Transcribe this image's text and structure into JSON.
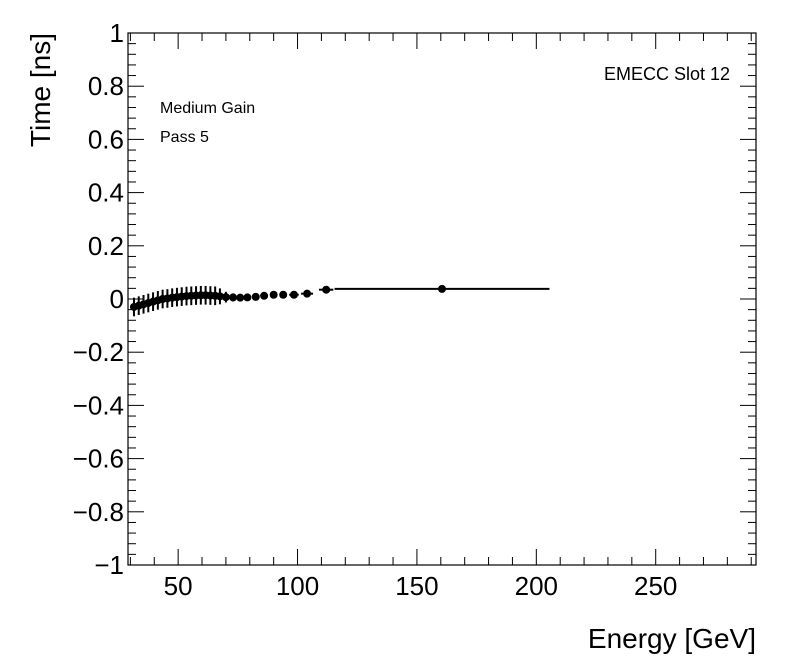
{
  "chart_data": {
    "type": "scatter",
    "xlabel": "Energy [GeV]",
    "ylabel": "Time [ns]",
    "xlim": [
      29,
      292
    ],
    "ylim": [
      -1,
      1
    ],
    "x_ticks": [
      50,
      100,
      150,
      200,
      250
    ],
    "x_tick_labels": [
      "50",
      "100",
      "150",
      "200",
      "250"
    ],
    "y_ticks": [
      -1,
      -0.8,
      -0.6,
      -0.4,
      -0.2,
      0,
      0.2,
      0.4,
      0.6,
      0.8,
      1
    ],
    "y_tick_labels": [
      "−1",
      "−0.8",
      "−0.6",
      "−0.4",
      "−0.2",
      "0",
      "0.2",
      "0.4",
      "0.6",
      "0.8",
      "1"
    ],
    "annotations": [
      "Medium Gain",
      "Pass 5",
      "EMECC Slot 12"
    ],
    "grid": false,
    "series": [
      {
        "color": "#000000",
        "marker": "circle",
        "points": [
          {
            "x": 31.5,
            "y": -0.03,
            "xerr": 1.0,
            "yerr": 0.035
          },
          {
            "x": 33.5,
            "y": -0.025,
            "xerr": 1.0,
            "yerr": 0.035
          },
          {
            "x": 35.5,
            "y": -0.02,
            "xerr": 1.0,
            "yerr": 0.035
          },
          {
            "x": 37.5,
            "y": -0.015,
            "xerr": 1.0,
            "yerr": 0.035
          },
          {
            "x": 39.5,
            "y": -0.01,
            "xerr": 1.0,
            "yerr": 0.035
          },
          {
            "x": 41.5,
            "y": -0.005,
            "xerr": 1.0,
            "yerr": 0.035
          },
          {
            "x": 43.5,
            "y": 0.0,
            "xerr": 1.0,
            "yerr": 0.035
          },
          {
            "x": 45.5,
            "y": 0.002,
            "xerr": 1.0,
            "yerr": 0.035
          },
          {
            "x": 47.5,
            "y": 0.005,
            "xerr": 1.0,
            "yerr": 0.035
          },
          {
            "x": 49.5,
            "y": 0.007,
            "xerr": 1.0,
            "yerr": 0.035
          },
          {
            "x": 51.5,
            "y": 0.009,
            "xerr": 1.0,
            "yerr": 0.035
          },
          {
            "x": 53.5,
            "y": 0.011,
            "xerr": 1.0,
            "yerr": 0.035
          },
          {
            "x": 55.5,
            "y": 0.012,
            "xerr": 1.0,
            "yerr": 0.035
          },
          {
            "x": 57.5,
            "y": 0.013,
            "xerr": 1.0,
            "yerr": 0.035
          },
          {
            "x": 59.5,
            "y": 0.014,
            "xerr": 1.0,
            "yerr": 0.035
          },
          {
            "x": 61.5,
            "y": 0.014,
            "xerr": 1.0,
            "yerr": 0.035
          },
          {
            "x": 63.5,
            "y": 0.013,
            "xerr": 1.0,
            "yerr": 0.035
          },
          {
            "x": 65.5,
            "y": 0.012,
            "xerr": 1.0,
            "yerr": 0.035
          },
          {
            "x": 67.5,
            "y": 0.01,
            "xerr": 1.0,
            "yerr": 0.03
          },
          {
            "x": 70.0,
            "y": 0.007,
            "xerr": 1.2,
            "yerr": 0.02
          },
          {
            "x": 73.0,
            "y": 0.006,
            "xerr": 1.2,
            "yerr": 0.015
          },
          {
            "x": 76.0,
            "y": 0.005,
            "xerr": 1.2,
            "yerr": 0.012
          },
          {
            "x": 79.0,
            "y": 0.006,
            "xerr": 1.2,
            "yerr": 0.01
          },
          {
            "x": 82.5,
            "y": 0.008,
            "xerr": 1.5,
            "yerr": 0.008
          },
          {
            "x": 86.0,
            "y": 0.012,
            "xerr": 1.5,
            "yerr": 0.007
          },
          {
            "x": 90.0,
            "y": 0.016,
            "xerr": 1.5,
            "yerr": 0.006
          },
          {
            "x": 94.0,
            "y": 0.016,
            "xerr": 1.5,
            "yerr": 0.006
          },
          {
            "x": 98.5,
            "y": 0.016,
            "xerr": 2.0,
            "yerr": 0.006
          },
          {
            "x": 104.0,
            "y": 0.02,
            "xerr": 2.5,
            "yerr": 0.006
          },
          {
            "x": 112.0,
            "y": 0.035,
            "xerr": 3.0,
            "yerr": 0.005
          },
          {
            "x": 160.5,
            "y": 0.038,
            "xerr": 45.0,
            "yerr": 0.005
          }
        ]
      }
    ]
  }
}
